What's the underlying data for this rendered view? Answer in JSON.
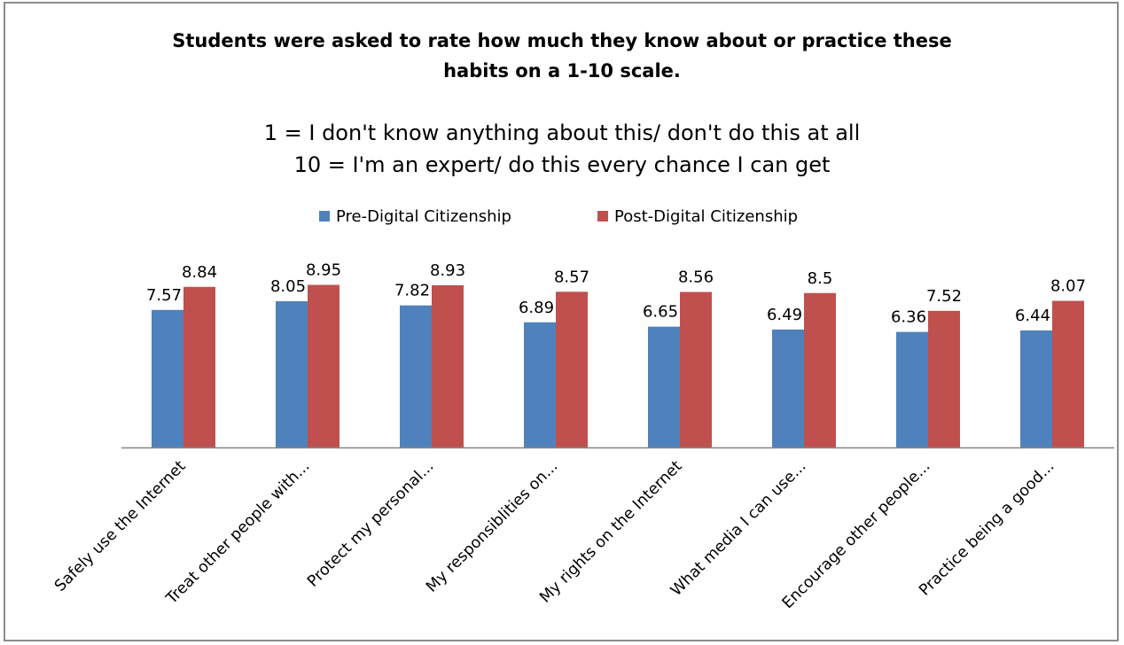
{
  "chart_data": {
    "type": "bar",
    "title_line1": "Students were asked to rate how much they know about or practice these",
    "title_line2": "habits on a 1-10 scale.",
    "subtitle_line1": "1 = I don't know anything about this/ don't do this at all",
    "subtitle_line2": "10 = I'm an expert/ do this every chance I can get",
    "categories": [
      "Safely use the Internet",
      "Treat other people with...",
      "Protect my personal...",
      "My responsiblities on...",
      "My rights on the Internet",
      "What media I can use...",
      "Encourage other people...",
      "Practice being a good..."
    ],
    "series": [
      {
        "name": "Pre-Digital Citizenship",
        "color": "#4f81bd",
        "values": [
          7.57,
          8.05,
          7.82,
          6.89,
          6.65,
          6.49,
          6.36,
          6.44
        ],
        "labels": [
          "7.57",
          "8.05",
          "7.82",
          "6.89",
          "6.65",
          "6.49",
          "6.36",
          "6.44"
        ]
      },
      {
        "name": "Post-Digital Citizenship",
        "color": "#c0504d",
        "values": [
          8.84,
          8.95,
          8.93,
          8.57,
          8.56,
          8.5,
          7.52,
          8.07
        ],
        "labels": [
          "8.84",
          "8.95",
          "8.93",
          "8.57",
          "8.56",
          "8.5",
          "7.52",
          "8.07"
        ]
      }
    ],
    "ylim": [
      0,
      10
    ],
    "axis_visible": false,
    "grid": false,
    "legend_position": "top-center"
  }
}
